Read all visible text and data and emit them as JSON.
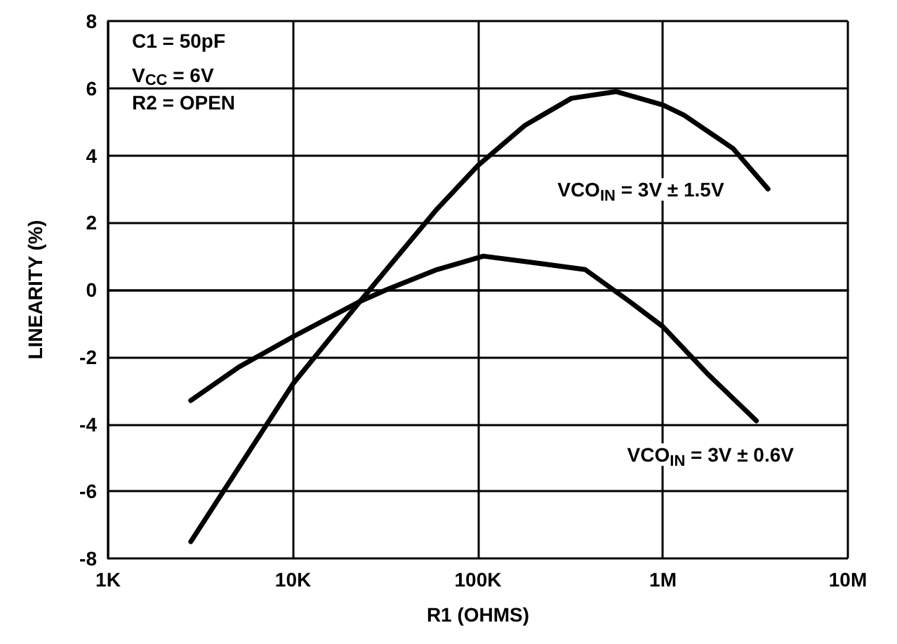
{
  "chart_data": {
    "type": "line",
    "xlabel": "R1 (OHMS)",
    "ylabel": "LINEARITY (%)",
    "log": "x",
    "xlim": [
      1000,
      10000000
    ],
    "xticks": [
      {
        "value": 1000,
        "label": "1K"
      },
      {
        "value": 10000,
        "label": "10K"
      },
      {
        "value": 100000,
        "label": "100K"
      },
      {
        "value": 1000000,
        "label": "1M"
      },
      {
        "value": 10000000,
        "label": "10M"
      }
    ],
    "ylim": [
      -8,
      8
    ],
    "yticks": [
      -8,
      -6,
      -4,
      -2,
      0,
      2,
      4,
      6,
      8
    ],
    "grid": true,
    "marker": "none",
    "line_style": "solid",
    "series": [
      {
        "name": "VCO$_{IN}$ = 3V ± 1.5V",
        "color": "#000000",
        "x": [
          2800,
          5900,
          10000,
          23000,
          32000,
          60000,
          100000,
          180000,
          320000,
          560000,
          1000000,
          1300000,
          2400000,
          3700000
        ],
        "values": [
          -7.5,
          -4.75,
          -2.8,
          -0.35,
          0.6,
          2.4,
          3.7,
          4.9,
          5.7,
          5.9,
          5.5,
          5.2,
          4.2,
          3.0
        ]
      },
      {
        "name": "VCO$_{IN}$ = 3V ± 0.6V",
        "color": "#000000",
        "x": [
          2800,
          5100,
          10000,
          23000,
          32000,
          60000,
          107000,
          205000,
          380000,
          660000,
          1000000,
          1740000,
          3200000
        ],
        "values": [
          -3.3,
          -2.3,
          -1.4,
          -0.35,
          0,
          0.6,
          1.0,
          0.8,
          0.6,
          -0.35,
          -1.1,
          -2.5,
          -3.9
        ]
      }
    ],
    "annotations": [
      "C1 = 50pF",
      "V$_{CC}$ = 6V",
      "R2 = OPEN"
    ]
  }
}
